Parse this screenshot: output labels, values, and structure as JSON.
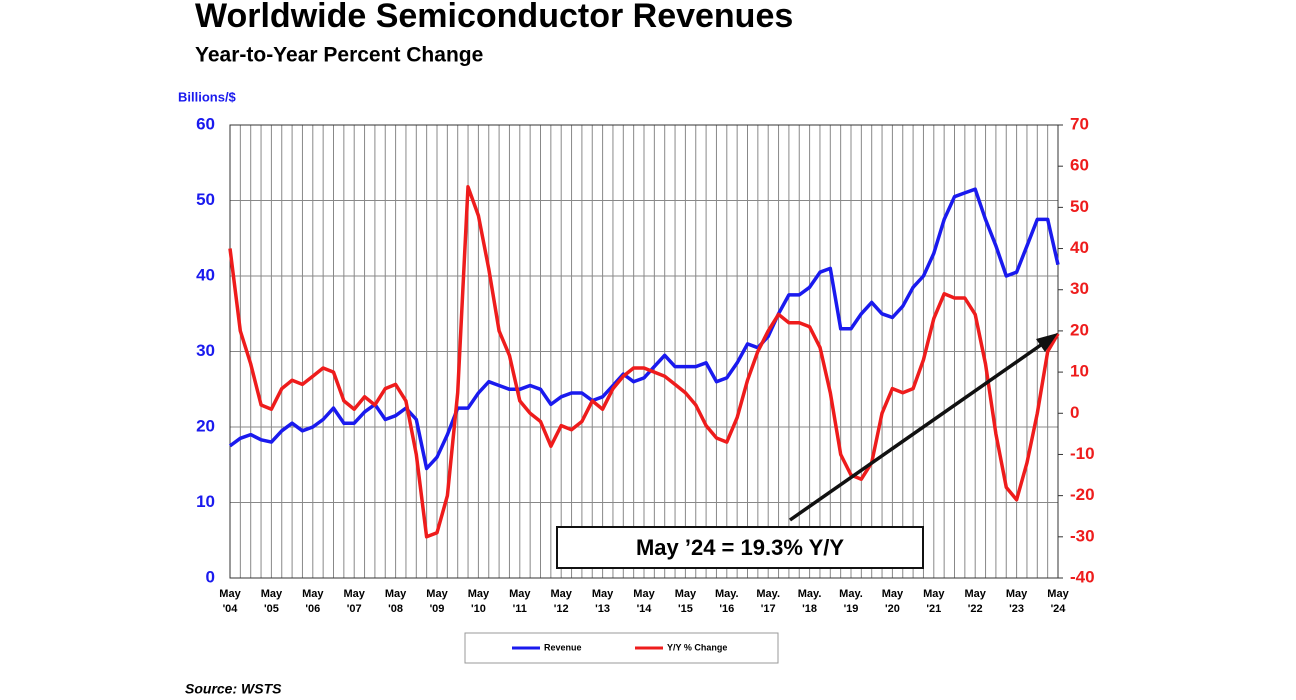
{
  "chart_data": {
    "type": "line",
    "title": "Worldwide Semiconductor Revenues",
    "subtitle": "Year-to-Year Percent Change",
    "y_label": "Billions/$",
    "annotation": "May ’24 = 19.3% Y/Y",
    "source": "Source: WSTS",
    "categories": [
      "May '04",
      null,
      null,
      null,
      "May '05",
      null,
      null,
      null,
      "May '06",
      null,
      null,
      null,
      "May '07",
      null,
      null,
      null,
      "May '08",
      null,
      null,
      null,
      "May '09",
      null,
      null,
      null,
      "May '10",
      null,
      null,
      null,
      "May '11",
      null,
      null,
      null,
      "May '12",
      null,
      null,
      null,
      "May '13",
      null,
      null,
      null,
      "May '14",
      null,
      null,
      null,
      "May '15",
      null,
      null,
      null,
      "May. '16",
      null,
      null,
      null,
      "May. '17",
      null,
      null,
      null,
      "May. '18",
      null,
      null,
      null,
      "May. '19",
      null,
      null,
      null,
      "May '20",
      null,
      null,
      null,
      "May '21",
      null,
      null,
      null,
      "May '22",
      null,
      null,
      null,
      "May '23",
      null,
      null,
      null,
      "May '24"
    ],
    "series": [
      {
        "name": "Revenue",
        "color": "#1a1aee",
        "axis": "y",
        "values": [
          17.5,
          18.5,
          19,
          18.3,
          18,
          19.5,
          20.5,
          19.5,
          20,
          21,
          22.5,
          20.5,
          20.5,
          22,
          23,
          21,
          21.5,
          22.5,
          21,
          14.5,
          16,
          19,
          22.5,
          22.5,
          24.5,
          26,
          25.5,
          25,
          25,
          25.5,
          25,
          23,
          24,
          24.5,
          24.5,
          23.5,
          24,
          25.5,
          27,
          26,
          26.5,
          28,
          29.5,
          28,
          28,
          28,
          28.5,
          26,
          26.5,
          28.5,
          31,
          30.5,
          32,
          35,
          37.5,
          37.5,
          38.5,
          40.5,
          41,
          33,
          33,
          35,
          36.5,
          35,
          34.5,
          36,
          38.5,
          40,
          43,
          47.5,
          50.5,
          51,
          51.5,
          47.5,
          44,
          40,
          40.5,
          44,
          47.5,
          47.5,
          41.5
        ]
      },
      {
        "name": "Y/Y % Change",
        "color": "#ee1c1c",
        "axis": "y2",
        "values": [
          40,
          20,
          12,
          2,
          1,
          6,
          8,
          7,
          9,
          11,
          10,
          3,
          1,
          4,
          2,
          6,
          7,
          3,
          -10,
          -30,
          -29,
          -20,
          5,
          55,
          48,
          35,
          20,
          14,
          3,
          0,
          -2,
          -8,
          -3,
          -4,
          -2,
          3,
          1,
          6,
          9,
          11,
          11,
          10,
          9,
          7,
          5,
          2,
          -3,
          -6,
          -7,
          -1,
          8,
          15,
          20,
          24,
          22,
          22,
          21,
          16,
          5,
          -10,
          -15,
          -16,
          -12,
          0,
          6,
          5,
          6,
          13,
          23,
          29,
          28,
          28,
          24,
          12,
          -5,
          -18,
          -21,
          -12,
          0,
          15,
          19.3
        ]
      }
    ],
    "ylim": [
      0,
      60
    ],
    "yticks": [
      0,
      10,
      20,
      30,
      40,
      50,
      60
    ],
    "y2lim": [
      -40,
      70
    ],
    "y2ticks": [
      -40,
      -30,
      -20,
      -10,
      0,
      10,
      20,
      30,
      40,
      50,
      60,
      70
    ],
    "grid": true
  }
}
